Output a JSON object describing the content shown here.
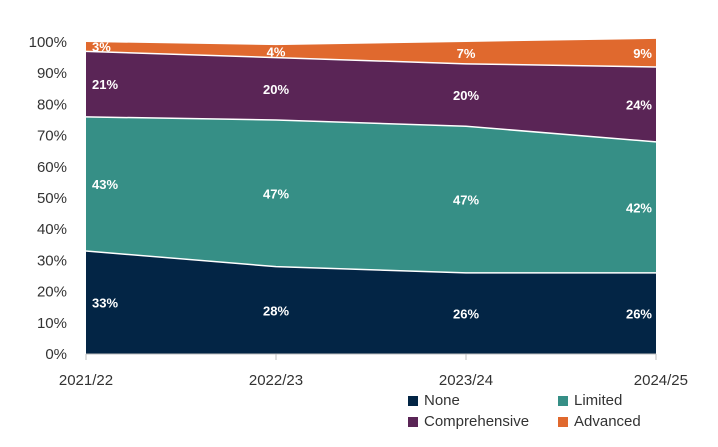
{
  "chart_data": {
    "type": "area",
    "stacked": true,
    "title": "",
    "xlabel": "",
    "ylabel": "",
    "categories": [
      "2021/22",
      "2022/23",
      "2023/24",
      "2024/25"
    ],
    "ylim": [
      0,
      100
    ],
    "yticks": [
      "0%",
      "10%",
      "20%",
      "30%",
      "40%",
      "50%",
      "60%",
      "70%",
      "80%",
      "90%",
      "100%"
    ],
    "series": [
      {
        "name": "None",
        "color": "#032545",
        "values": [
          33,
          28,
          26,
          26
        ],
        "labels": [
          "33%",
          "28%",
          "26%",
          "26%"
        ]
      },
      {
        "name": "Limited",
        "color": "#368f86",
        "values": [
          43,
          47,
          47,
          42
        ],
        "labels": [
          "43%",
          "47%",
          "47%",
          "42%"
        ]
      },
      {
        "name": "Comprehensive",
        "color": "#5a2556",
        "values": [
          21,
          20,
          20,
          24
        ],
        "labels": [
          "21%",
          "20%",
          "20%",
          "24%"
        ]
      },
      {
        "name": "Advanced",
        "color": "#e0692e",
        "values": [
          3,
          4,
          7,
          9
        ],
        "labels": [
          "3%",
          "4%",
          "7%",
          "9%"
        ]
      }
    ],
    "legend_position": "bottom-right",
    "grid": false
  }
}
